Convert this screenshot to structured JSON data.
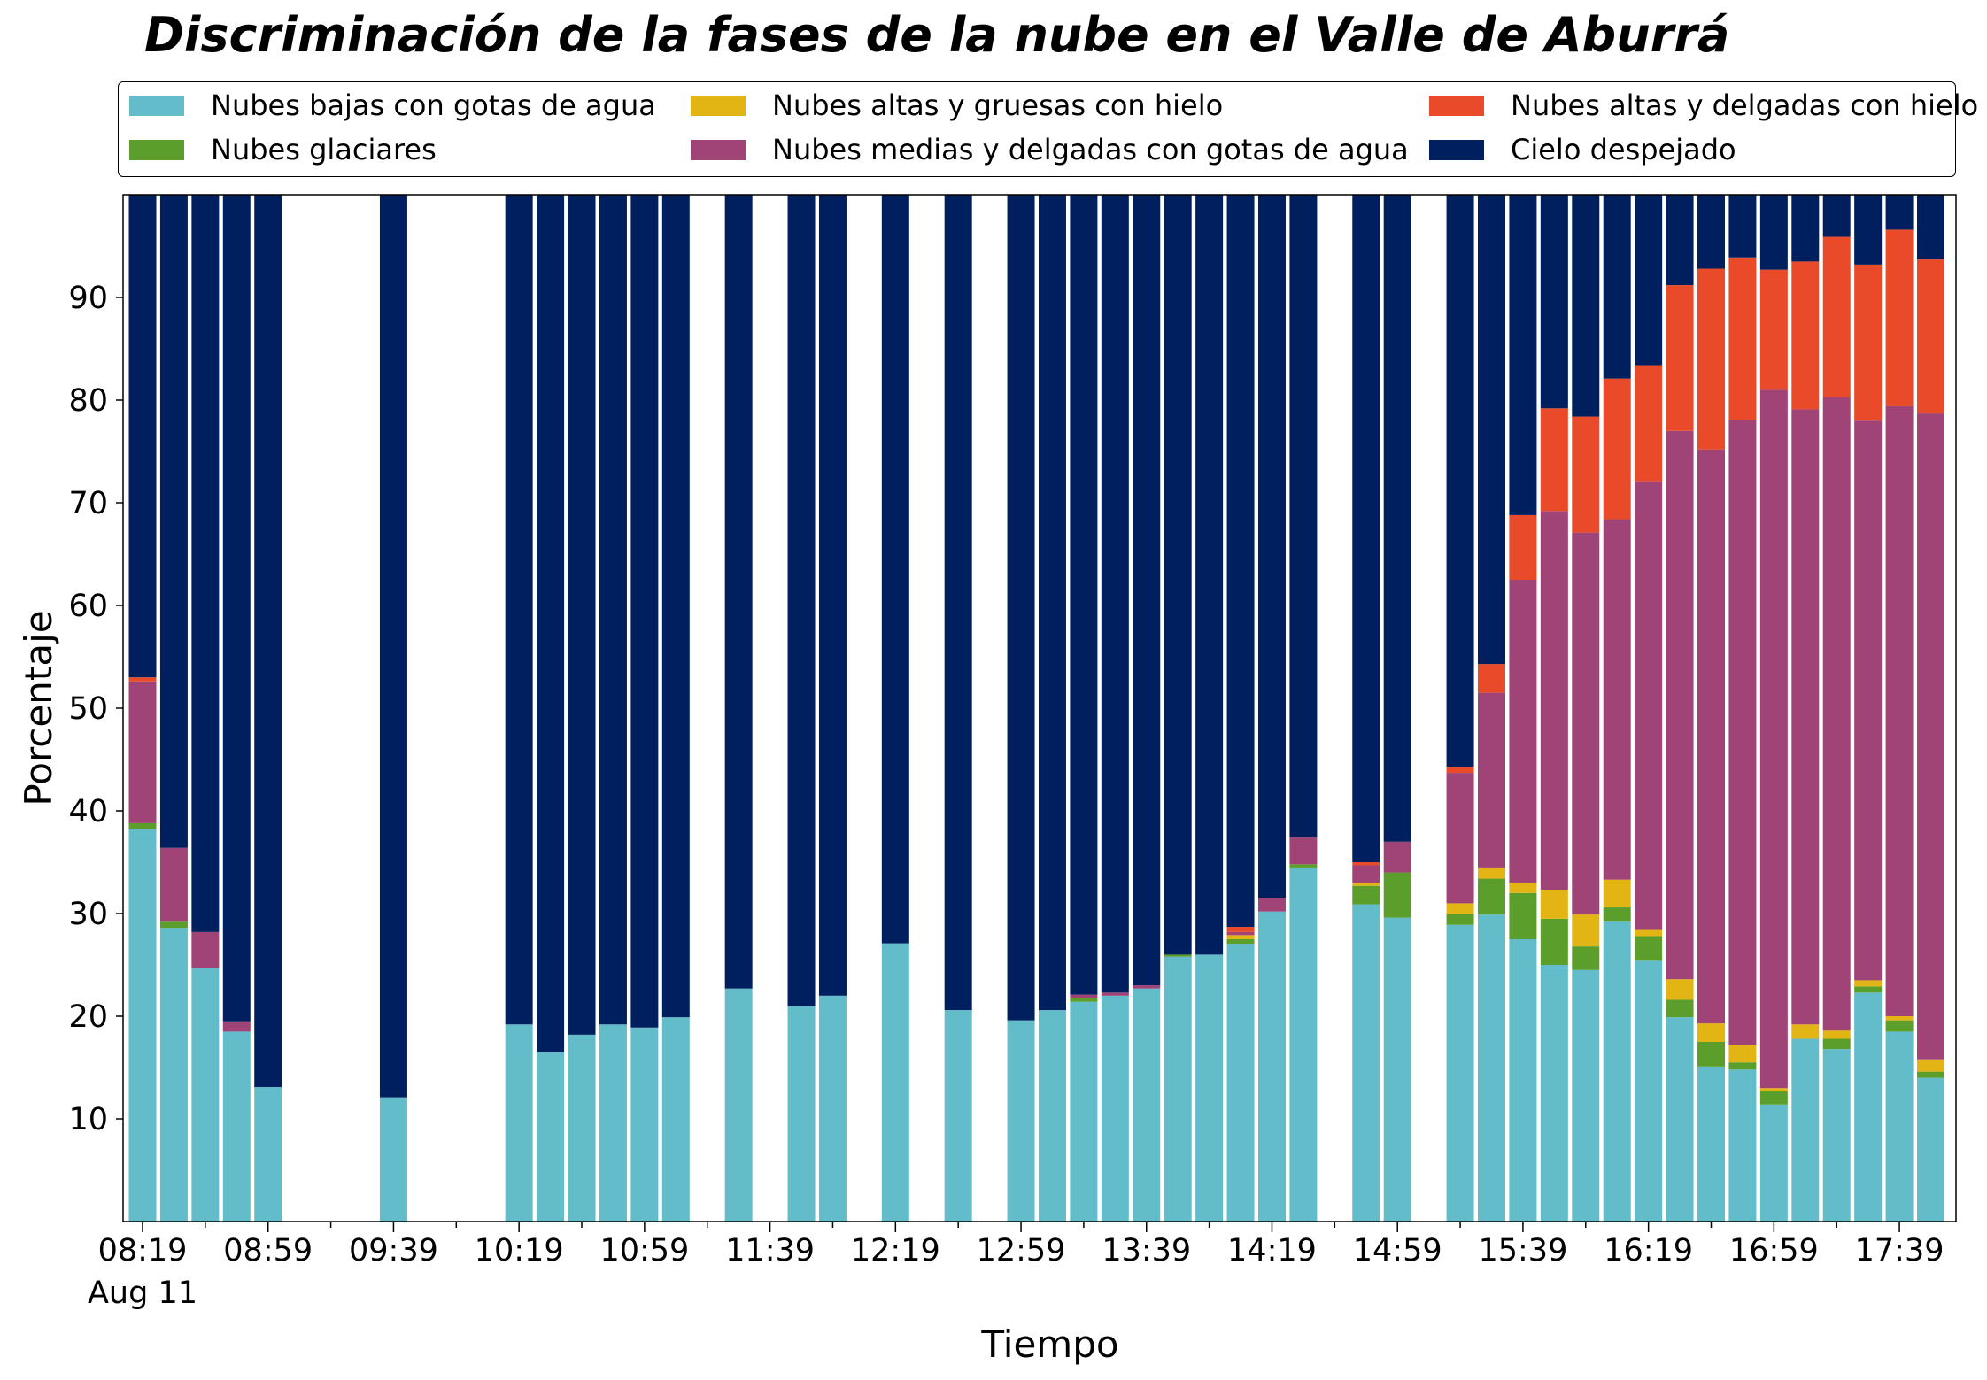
{
  "title": "Discriminación de la fases de la nube en el Valle de Aburrá",
  "colors": {
    "low_water": "#63bcc9",
    "glacial": "#5b9e2c",
    "high_thick_ice": "#e3b514",
    "high_thin_ice": "#e94b2a",
    "mid_thin_water": "#a04377",
    "clear_sky": "#001f5e"
  },
  "legend": [
    {
      "key": "low_water",
      "label": "Nubes bajas con gotas de agua"
    },
    {
      "key": "high_thick_ice",
      "label": "Nubes altas y gruesas con hielo"
    },
    {
      "key": "high_thin_ice",
      "label": "Nubes altas y delgadas con hielo"
    },
    {
      "key": "glacial",
      "label": "Nubes glaciares"
    },
    {
      "key": "mid_thin_water",
      "label": "Nubes medias y delgadas con gotas de agua"
    },
    {
      "key": "clear_sky",
      "label": "Cielo despejado"
    }
  ],
  "chart_data": {
    "type": "bar",
    "stacked": true,
    "title": "Discriminación de la fases de la nube en el Valle de Aburrá",
    "xlabel": "Tiempo",
    "ylabel": "Porcentaje",
    "ylim": [
      0,
      100
    ],
    "yticks": [
      10,
      20,
      30,
      40,
      50,
      60,
      70,
      80,
      90
    ],
    "x_tick_labels": [
      "08:19",
      "08:59",
      "09:39",
      "10:19",
      "10:59",
      "11:39",
      "12:19",
      "12:59",
      "13:39",
      "14:19",
      "14:59",
      "15:39",
      "16:19",
      "16:59",
      "17:39"
    ],
    "x_date_label": "Aug 11",
    "grid": false,
    "legend_position": "top",
    "categories": [
      "08:19",
      "08:29",
      "08:39",
      "08:49",
      "08:59",
      "09:09",
      "09:19",
      "09:29",
      "09:39",
      "09:49",
      "09:59",
      "10:09",
      "10:19",
      "10:29",
      "10:39",
      "10:49",
      "10:59",
      "11:09",
      "11:19",
      "11:29",
      "11:39",
      "11:49",
      "11:59",
      "12:09",
      "12:19",
      "12:29",
      "12:39",
      "12:49",
      "12:59",
      "13:09",
      "13:19",
      "13:29",
      "13:39",
      "13:49",
      "13:59",
      "14:09",
      "14:19",
      "14:29",
      "14:39",
      "14:49",
      "14:59",
      "15:09",
      "15:19",
      "15:29",
      "15:39",
      "15:49",
      "15:59",
      "16:09",
      "16:19",
      "16:29",
      "16:39",
      "16:49",
      "16:59",
      "17:09",
      "17:19",
      "17:29",
      "17:39",
      "17:49"
    ],
    "series": [
      {
        "key": "low_water",
        "name": "Nubes bajas con gotas de agua",
        "values": [
          38.2,
          28.6,
          24.7,
          18.5,
          13.1,
          null,
          null,
          null,
          12.1,
          null,
          null,
          null,
          19.2,
          16.5,
          18.2,
          19.2,
          18.9,
          19.9,
          null,
          22.7,
          null,
          21.0,
          22.0,
          null,
          27.1,
          null,
          20.6,
          null,
          19.6,
          20.6,
          21.4,
          22.0,
          22.7,
          25.8,
          26.0,
          27.0,
          30.2,
          34.4,
          null,
          30.9,
          29.6,
          null,
          28.9,
          29.9,
          27.5,
          25.0,
          24.5,
          29.2,
          25.4,
          19.9,
          15.1,
          14.8,
          11.4,
          17.8,
          16.8,
          22.3,
          18.5,
          14.0
        ]
      },
      {
        "key": "glacial",
        "name": "Nubes glaciares",
        "values": [
          0.6,
          0.6,
          0,
          0,
          0,
          null,
          null,
          null,
          0,
          null,
          null,
          null,
          0,
          0,
          0,
          0,
          0,
          0,
          null,
          0,
          null,
          0,
          0,
          null,
          0,
          null,
          0,
          null,
          0,
          0,
          0.4,
          0,
          0,
          0.2,
          0,
          0.5,
          0,
          0.4,
          null,
          1.8,
          4.4,
          null,
          1.1,
          3.5,
          4.5,
          4.5,
          2.3,
          1.4,
          2.4,
          1.7,
          2.4,
          0.7,
          1.3,
          0,
          1.0,
          0.6,
          1.1,
          0.6
        ]
      },
      {
        "key": "high_thick_ice",
        "name": "Nubes altas y gruesas con hielo",
        "values": [
          0,
          0,
          0,
          0,
          0,
          null,
          null,
          null,
          0,
          null,
          null,
          null,
          0,
          0,
          0,
          0,
          0,
          0,
          null,
          0,
          null,
          0,
          0,
          null,
          0,
          null,
          0,
          null,
          0,
          0,
          0,
          0,
          0,
          0,
          0,
          0.4,
          0,
          0,
          null,
          0.3,
          0,
          null,
          1.0,
          1.0,
          1.0,
          2.8,
          3.1,
          2.7,
          0.6,
          2.0,
          1.8,
          1.7,
          0.3,
          1.4,
          0.8,
          0.6,
          0.4,
          1.2
        ]
      },
      {
        "key": "mid_thin_water",
        "name": "Nubes medias y delgadas con gotas de agua",
        "values": [
          13.8,
          7.2,
          3.5,
          1.0,
          0,
          null,
          null,
          null,
          0,
          null,
          null,
          null,
          0,
          0,
          0,
          0,
          0,
          0,
          null,
          0,
          null,
          0,
          0,
          null,
          0,
          null,
          0,
          null,
          0,
          0,
          0.3,
          0.3,
          0.3,
          0,
          0,
          0.3,
          1.3,
          2.6,
          null,
          1.7,
          3.0,
          null,
          12.7,
          17.1,
          29.5,
          36.9,
          37.2,
          35.1,
          43.7,
          53.4,
          55.9,
          60.9,
          68.0,
          59.9,
          61.7,
          54.5,
          59.4,
          62.9
        ]
      },
      {
        "key": "high_thin_ice",
        "name": "Nubes altas y delgadas con hielo",
        "values": [
          0.4,
          0,
          0,
          0,
          0,
          null,
          null,
          null,
          0,
          null,
          null,
          null,
          0,
          0,
          0,
          0,
          0,
          0,
          null,
          0,
          null,
          0,
          0,
          null,
          0,
          null,
          0,
          null,
          0,
          0,
          0,
          0,
          0,
          0,
          0,
          0.5,
          0,
          0,
          null,
          0.3,
          0,
          null,
          0.6,
          2.8,
          6.3,
          10.0,
          11.3,
          13.7,
          11.3,
          14.2,
          17.6,
          15.8,
          11.7,
          14.4,
          15.6,
          15.2,
          17.2,
          15.0
        ]
      },
      {
        "key": "clear_sky",
        "name": "Cielo despejado",
        "values": [
          47.0,
          63.6,
          71.8,
          80.5,
          86.9,
          null,
          null,
          null,
          87.9,
          null,
          null,
          null,
          80.8,
          83.5,
          81.8,
          80.8,
          81.1,
          80.1,
          null,
          77.3,
          null,
          79.0,
          78.0,
          null,
          72.9,
          null,
          79.4,
          null,
          80.4,
          79.4,
          77.9,
          77.7,
          77.0,
          74.0,
          74.0,
          71.3,
          68.5,
          62.6,
          null,
          65.0,
          63.0,
          null,
          55.7,
          45.7,
          31.2,
          20.8,
          21.6,
          17.9,
          16.6,
          8.8,
          7.2,
          6.1,
          7.3,
          6.5,
          4.1,
          6.8,
          3.4,
          6.3
        ]
      }
    ]
  }
}
